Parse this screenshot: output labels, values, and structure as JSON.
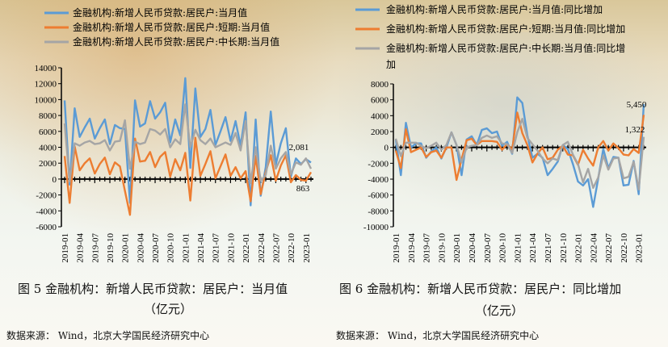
{
  "chart_data": [
    {
      "type": "line",
      "title": "图5 金融机构：新增人民币贷款：居民户：当月值（亿元）",
      "ylim": [
        -6000,
        14000
      ],
      "yticks": [
        -6000,
        -4000,
        -2000,
        0,
        2000,
        4000,
        6000,
        8000,
        10000,
        12000,
        14000
      ],
      "xtick_labels": [
        "2019-01",
        "2019-04",
        "2019-07",
        "2019-10",
        "2020-01",
        "2020-04",
        "2020-07",
        "2020-10",
        "2021-01",
        "2021-04",
        "2021-07",
        "2021-10",
        "2022-01",
        "2022-04",
        "2022-07",
        "2022-10",
        "2023-01"
      ],
      "x_start": "2019-01",
      "x_end": "2023-02",
      "series": [
        {
          "name": "金融机构:新增人民币贷款:居民户:当月值",
          "color": "#5b9bd5",
          "values": [
            9900,
            -700,
            8900,
            5300,
            6500,
            7600,
            5100,
            6400,
            7500,
            4400,
            6800,
            6400,
            6300,
            -3000,
            9900,
            6600,
            7000,
            9800,
            7600,
            8400,
            9600,
            4600,
            7500,
            5500,
            12700,
            1400,
            11400,
            5300,
            6300,
            8700,
            4300,
            6000,
            7800,
            4800,
            7300,
            4200,
            8400,
            -3300,
            7500,
            -2100,
            1500,
            8500,
            1800,
            4500,
            6400,
            300,
            2600,
            1900,
            2500,
            2081
          ]
        },
        {
          "name": "金融机构:新增人民币贷款:居民户:短期:当月值",
          "color": "#ed7d31",
          "values": [
            2900,
            -3000,
            4100,
            1100,
            2000,
            2600,
            700,
            1900,
            2700,
            600,
            2100,
            1600,
            -1500,
            -4500,
            5100,
            2200,
            2300,
            3400,
            1500,
            2800,
            3400,
            300,
            2500,
            1100,
            3300,
            -2700,
            5200,
            400,
            1900,
            3500,
            100,
            1600,
            3100,
            400,
            1500,
            100,
            1000,
            -2800,
            2900,
            -1900,
            900,
            3000,
            -200,
            1700,
            3000,
            -400,
            500,
            -100,
            -200,
            863
          ]
        },
        {
          "name": "金融机构:新增人民币贷款:居民户:中长期:当月值",
          "color": "#a5a5a5",
          "values": [
            7000,
            -300,
            4500,
            4200,
            4600,
            4800,
            4400,
            4500,
            4900,
            3600,
            4700,
            4800,
            7400,
            1300,
            4700,
            4400,
            4600,
            6300,
            6100,
            5600,
            6300,
            4000,
            5000,
            4400,
            9400,
            4000,
            6200,
            4900,
            4400,
            5100,
            4000,
            4300,
            4600,
            4300,
            5800,
            3600,
            7300,
            -500,
            4000,
            -200,
            500,
            4200,
            1300,
            2600,
            3400,
            600,
            2100,
            1800,
            2600,
            1300
          ]
        }
      ],
      "annotations": [
        "2,081",
        "863"
      ],
      "legend": "top"
    },
    {
      "type": "line",
      "title": "图6 金融机构：新增人民币贷款：居民户：同比增加（亿元）",
      "ylim": [
        -10000,
        8000
      ],
      "yticks": [
        -10000,
        -8000,
        -6000,
        -4000,
        -2000,
        0,
        2000,
        4000,
        6000,
        8000
      ],
      "xtick_labels": [
        "2019-01",
        "2019-04",
        "2019-07",
        "2019-10",
        "2020-01",
        "2020-04",
        "2020-07",
        "2020-10",
        "2021-01",
        "2021-04",
        "2021-07",
        "2021-10",
        "2022-01",
        "2022-04",
        "2022-07",
        "2022-10",
        "2023-01"
      ],
      "x_start": "2019-01",
      "x_end": "2023-02",
      "series": [
        {
          "name": "金融机构:新增人民币贷款:居民户:当月值:同比增加",
          "color": "#5b9bd5",
          "values": [
            1000,
            -3500,
            3100,
            0,
            500,
            500,
            -1300,
            -500,
            0,
            -1400,
            0,
            1900,
            300,
            -3500,
            1000,
            1400,
            300,
            2200,
            2400,
            1800,
            2000,
            200,
            700,
            -800,
            6300,
            5600,
            1500,
            -1300,
            -800,
            -1300,
            -3500,
            -2700,
            -1800,
            300,
            -200,
            -2100,
            -4300,
            -4800,
            -4000,
            -7500,
            -3900,
            -200,
            -2600,
            -1200,
            -1300,
            -4800,
            -4700,
            -1700,
            -5900,
            5450
          ]
        },
        {
          "name": "金融机构:新增人民币贷款:居民户:短期:当月值:同比增加",
          "color": "#ed7d31",
          "values": [
            -400,
            -2600,
            2300,
            -600,
            -300,
            0,
            -1200,
            -600,
            -400,
            -1300,
            0,
            0,
            -4100,
            -1500,
            900,
            1100,
            300,
            800,
            800,
            800,
            700,
            -300,
            400,
            -300,
            4400,
            1800,
            300,
            -1900,
            -800,
            0,
            -1500,
            -1300,
            -300,
            200,
            -900,
            -1000,
            -2200,
            -300,
            -1400,
            -2300,
            0,
            800,
            -400,
            500,
            -100,
            -900,
            -1000,
            -200,
            -700,
            4100
          ]
        },
        {
          "name": "金融机构:新增人民币贷款:居民户:中长期:当月值:同比增加",
          "color": "#a5a5a5",
          "values": [
            1100,
            -1100,
            600,
            600,
            600,
            200,
            -100,
            200,
            600,
            -300,
            300,
            1900,
            300,
            -1900,
            0,
            200,
            300,
            1200,
            1500,
            1200,
            1400,
            500,
            400,
            -700,
            1900,
            3600,
            1200,
            400,
            -400,
            -1400,
            -2000,
            -1400,
            -1600,
            300,
            700,
            -900,
            -2100,
            -4400,
            -2700,
            -5100,
            -3800,
            -1000,
            -2800,
            -1400,
            -1300,
            -3900,
            -3700,
            -1800,
            -5300,
            1322
          ]
        }
      ],
      "annotations": [
        "5,450",
        "1,322"
      ],
      "legend": "top"
    }
  ],
  "captions": {
    "fig5_line1": "图 5  金融机构：新增人民币贷款：居民户：当月值",
    "fig5_line2": "（亿元）",
    "fig6_line1": "图 6  金融机构：新增人民币贷款：居民户：同比增加",
    "fig6_line2": "（亿元）"
  },
  "sources": {
    "left": "数据来源：  Wind，北京大学国民经济研究中心",
    "right": "数据来源：  Wind，北京大学国民经济研究中心"
  }
}
